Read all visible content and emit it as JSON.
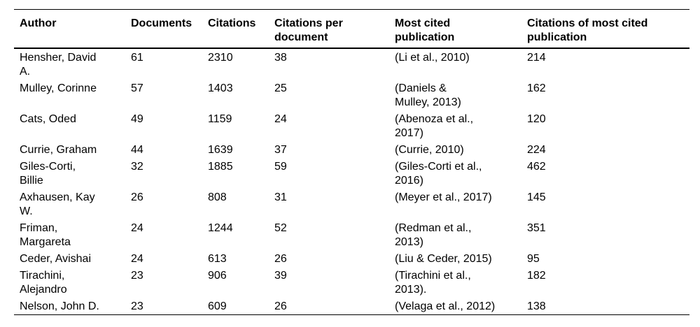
{
  "colors": {
    "text": "#000000",
    "rules": "#000000",
    "background": "#ffffff"
  },
  "table": {
    "columns": [
      {
        "label": "Author"
      },
      {
        "label": "Documents"
      },
      {
        "label": "Citations"
      },
      {
        "label": "Citations per\ndocument"
      },
      {
        "label": "Most cited\npublication"
      },
      {
        "label": "Citations of most cited\npublication"
      }
    ],
    "rows": [
      {
        "author": "Hensher, David\nA.",
        "documents": "61",
        "citations": "2310",
        "citations_per_document": "38",
        "most_cited_publication": "(Li et al., 2010)",
        "citations_of_most_cited_publication": "214"
      },
      {
        "author": "Mulley, Corinne",
        "documents": "57",
        "citations": "1403",
        "citations_per_document": "25",
        "most_cited_publication": "(Daniels &\nMulley, 2013)",
        "citations_of_most_cited_publication": "162"
      },
      {
        "author": "Cats, Oded",
        "documents": "49",
        "citations": "1159",
        "citations_per_document": "24",
        "most_cited_publication": "(Abenoza et al.,\n2017)",
        "citations_of_most_cited_publication": "120"
      },
      {
        "author": "Currie, Graham",
        "documents": "44",
        "citations": "1639",
        "citations_per_document": "37",
        "most_cited_publication": "(Currie, 2010)",
        "citations_of_most_cited_publication": "224"
      },
      {
        "author": "Giles-Corti,\nBillie",
        "documents": "32",
        "citations": "1885",
        "citations_per_document": "59",
        "most_cited_publication": "(Giles-Corti et al.,\n2016)",
        "citations_of_most_cited_publication": "462"
      },
      {
        "author": "Axhausen, Kay\nW.",
        "documents": "26",
        "citations": "808",
        "citations_per_document": "31",
        "most_cited_publication": "(Meyer et al., 2017)",
        "citations_of_most_cited_publication": "145"
      },
      {
        "author": "Friman,\nMargareta",
        "documents": "24",
        "citations": "1244",
        "citations_per_document": "52",
        "most_cited_publication": "(Redman et al.,\n2013)",
        "citations_of_most_cited_publication": "351"
      },
      {
        "author": "Ceder, Avishai",
        "documents": "24",
        "citations": "613",
        "citations_per_document": "26",
        "most_cited_publication": "(Liu & Ceder, 2015)",
        "citations_of_most_cited_publication": "95"
      },
      {
        "author": "Tirachini,\nAlejandro",
        "documents": "23",
        "citations": "906",
        "citations_per_document": "39",
        "most_cited_publication": "(Tirachini et al.,\n2013).",
        "citations_of_most_cited_publication": "182"
      },
      {
        "author": "Nelson, John D.",
        "documents": "23",
        "citations": "609",
        "citations_per_document": "26",
        "most_cited_publication": "(Velaga et al., 2012)",
        "citations_of_most_cited_publication": "138"
      }
    ]
  }
}
